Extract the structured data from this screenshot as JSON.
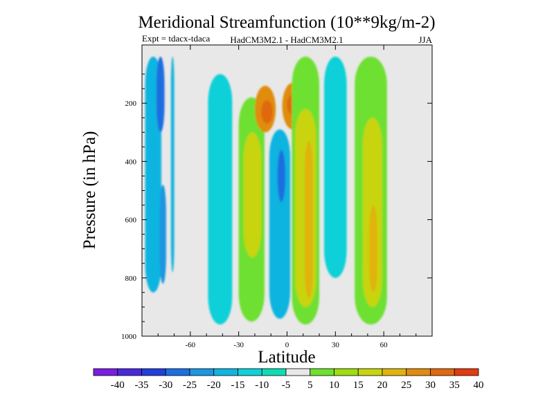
{
  "chart_data": {
    "type": "contour",
    "title": "Meridional Streamfunction (10**9kg/m-2)",
    "subtitle_left": "Expt = tdacx-tdaca",
    "subtitle_center": "HadCM3M2.1 - HadCM3M2.1",
    "subtitle_right": "JJA",
    "xlabel": "Latitude",
    "ylabel": "Pressure (in hPa)",
    "xlim": [
      -90,
      90
    ],
    "ylim": [
      1000,
      0
    ],
    "xticks": [
      -60,
      -30,
      0,
      30,
      60
    ],
    "xtick_labels": [
      "-60",
      "-30",
      "0",
      "30",
      "60"
    ],
    "yticks": [
      200,
      400,
      600,
      800,
      1000
    ],
    "ytick_labels": [
      "200",
      "400",
      "600",
      "800",
      "1000"
    ],
    "background_color": "#e8e8e8",
    "colorbar": {
      "labels": [
        "-40",
        "-35",
        "-30",
        "-25",
        "-20",
        "-15",
        "-10",
        "-5",
        "5",
        "10",
        "15",
        "20",
        "25",
        "30",
        "35",
        "40"
      ],
      "colors": [
        "#7a1ee0",
        "#4a2ad8",
        "#2040d8",
        "#1e6ee0",
        "#1e96e0",
        "#10b4e0",
        "#10d0d8",
        "#10dcb4",
        "#e8e8e8",
        "#6ee030",
        "#a0dc10",
        "#c8d410",
        "#e0b410",
        "#e08c10",
        "#e06810",
        "#e03c10"
      ]
    },
    "features": [
      {
        "name": "band-sh-polar",
        "value": -15,
        "lat": [
          -88,
          -78
        ],
        "p": [
          40,
          850
        ]
      },
      {
        "name": "core-sh-polar",
        "value": -25,
        "lat": [
          -81,
          -76
        ],
        "p": [
          40,
          300
        ]
      },
      {
        "name": "core-sh-polar-lower",
        "value": -20,
        "lat": [
          -79,
          -75
        ],
        "p": [
          480,
          820
        ]
      },
      {
        "name": "band-sh-polar-2",
        "value": -15,
        "lat": [
          -72,
          -70
        ],
        "p": [
          40,
          780
        ]
      },
      {
        "name": "band-sh-mid",
        "value": -10,
        "lat": [
          -49,
          -34
        ],
        "p": [
          100,
          960
        ]
      },
      {
        "name": "band-sh-subtropic",
        "value": 10,
        "lat": [
          -30,
          -14
        ],
        "p": [
          180,
          950
        ]
      },
      {
        "name": "core-sh-subtropic",
        "value": 20,
        "lat": [
          -27,
          -16
        ],
        "p": [
          300,
          730
        ]
      },
      {
        "name": "cell-equatorial-negative",
        "value": -15,
        "lat": [
          -11,
          2
        ],
        "p": [
          290,
          940
        ]
      },
      {
        "name": "core-equatorial-negative",
        "value": -25,
        "lat": [
          -6,
          -1
        ],
        "p": [
          360,
          540
        ]
      },
      {
        "name": "upper-cell-1",
        "value": 30,
        "lat": [
          -20,
          -7
        ],
        "p": [
          140,
          300
        ]
      },
      {
        "name": "upper-core-1",
        "value": 35,
        "lat": [
          -16,
          -9
        ],
        "p": [
          190,
          270
        ]
      },
      {
        "name": "upper-cell-2",
        "value": 30,
        "lat": [
          -3,
          10
        ],
        "p": [
          130,
          290
        ]
      },
      {
        "name": "upper-core-2",
        "value": 35,
        "lat": [
          0,
          7
        ],
        "p": [
          170,
          240
        ]
      },
      {
        "name": "band-nh-tropic",
        "value": 10,
        "lat": [
          3,
          20
        ],
        "p": [
          40,
          960
        ]
      },
      {
        "name": "core-nh-tropic",
        "value": 20,
        "lat": [
          5,
          18
        ],
        "p": [
          220,
          900
        ]
      },
      {
        "name": "core-nh-tropic-inner",
        "value": 25,
        "lat": [
          11,
          16
        ],
        "p": [
          330,
          870
        ]
      },
      {
        "name": "band-nh-subtropic",
        "value": -10,
        "lat": [
          23,
          37
        ],
        "p": [
          40,
          800
        ]
      },
      {
        "name": "band-nh-mid",
        "value": 10,
        "lat": [
          42,
          62
        ],
        "p": [
          40,
          960
        ]
      },
      {
        "name": "core-nh-mid",
        "value": 20,
        "lat": [
          47,
          59
        ],
        "p": [
          250,
          900
        ]
      },
      {
        "name": "core-nh-mid-inner",
        "value": 25,
        "lat": [
          51,
          56
        ],
        "p": [
          550,
          850
        ]
      }
    ]
  }
}
